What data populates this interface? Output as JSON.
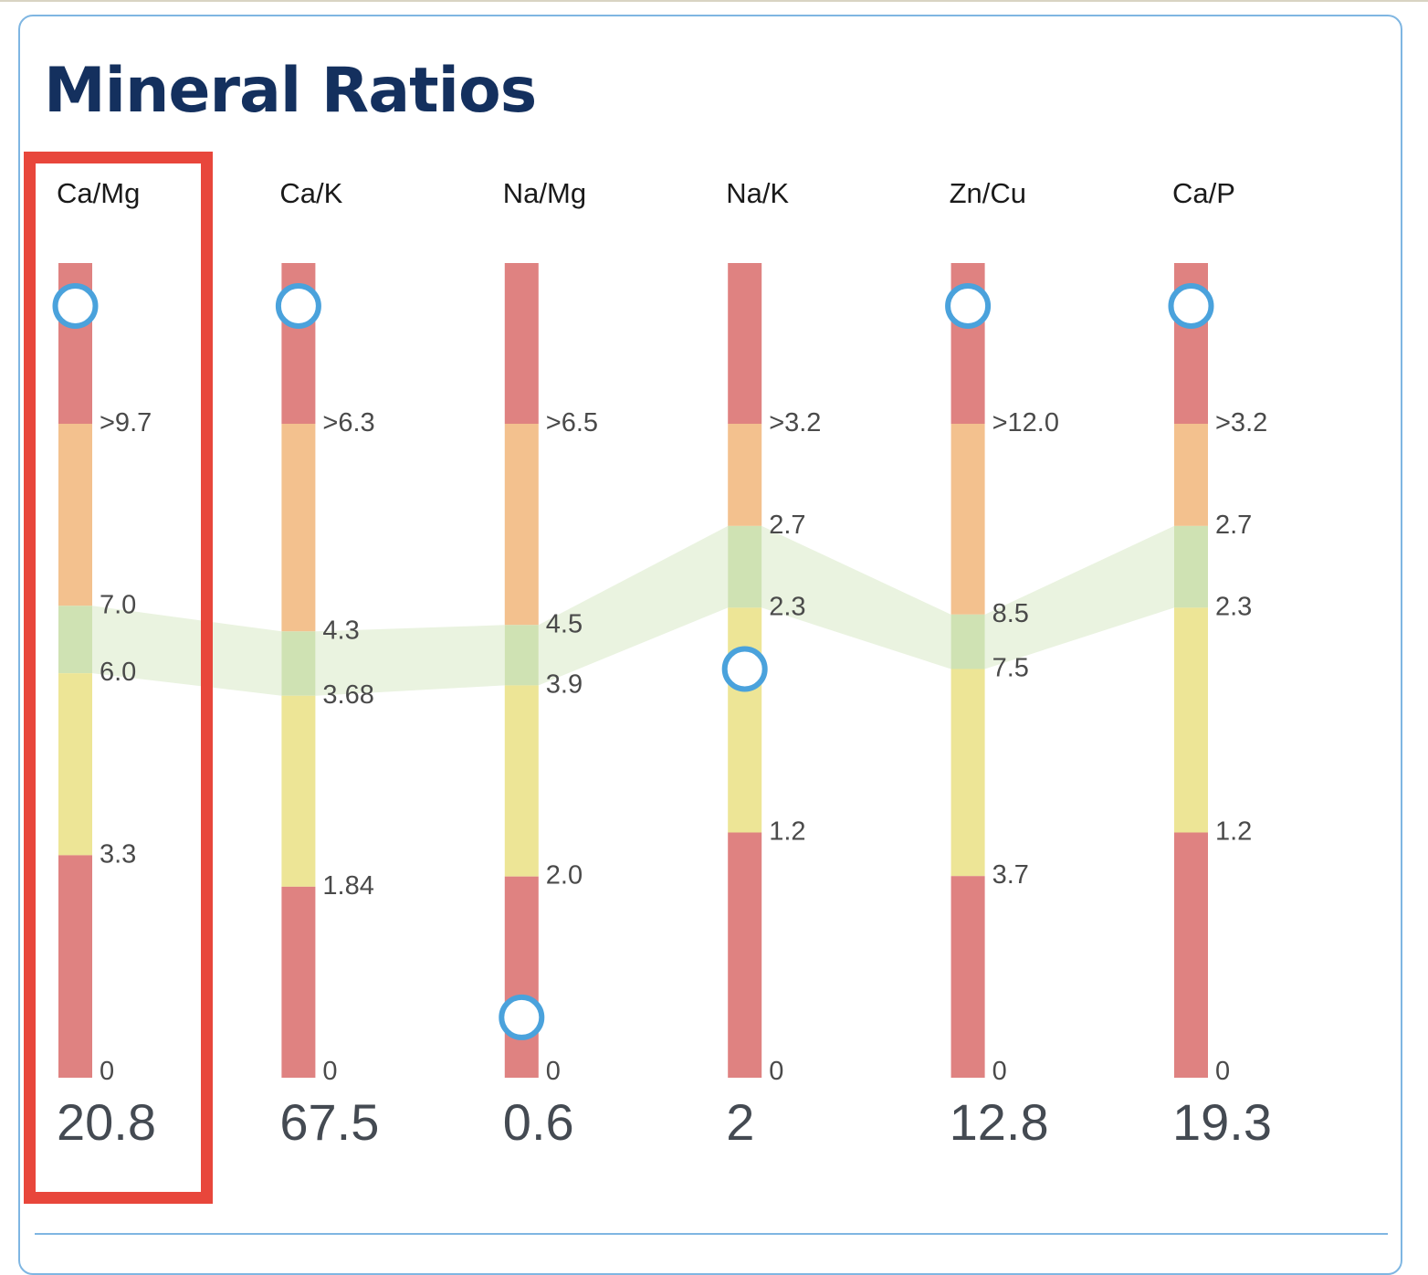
{
  "title": "Mineral Ratios",
  "highlighted_ratio": "Ca/Mg",
  "colors": {
    "high": "#df8281",
    "elevated": "#f3c18e",
    "ideal": "#cfe2b3",
    "low": "#ede596",
    "critical_low": "#df8281",
    "ideal_band": "#eaf3e0",
    "marker": "#4aa2dc",
    "title": "#14305e",
    "highlight": "#e8463b",
    "card_border": "#7fb6e2"
  },
  "chart_data": {
    "type": "range-gauge",
    "title": "Mineral Ratios",
    "series": [
      {
        "name": "Ca/Mg",
        "value_text": "20.8",
        "value": 20.8,
        "marker_position": "above-range",
        "min_label": "0",
        "thresholds": [
          {
            "label": ">9.7",
            "value": 9.7
          },
          {
            "label": "7.0",
            "value": 7.0
          },
          {
            "label": "6.0",
            "value": 6.0
          },
          {
            "label": "3.3",
            "value": 3.3
          }
        ]
      },
      {
        "name": "Ca/K",
        "value_text": "67.5",
        "value": 67.5,
        "marker_position": "above-range",
        "min_label": "0",
        "thresholds": [
          {
            "label": ">6.3",
            "value": 6.3
          },
          {
            "label": "4.3",
            "value": 4.3
          },
          {
            "label": "3.68",
            "value": 3.68
          },
          {
            "label": "1.84",
            "value": 1.84
          }
        ]
      },
      {
        "name": "Na/Mg",
        "value_text": "0.6",
        "value": 0.6,
        "marker_position": "in-range",
        "min_label": "0",
        "thresholds": [
          {
            "label": ">6.5",
            "value": 6.5
          },
          {
            "label": "4.5",
            "value": 4.5
          },
          {
            "label": "3.9",
            "value": 3.9
          },
          {
            "label": "2.0",
            "value": 2.0
          }
        ]
      },
      {
        "name": "Na/K",
        "value_text": "2",
        "value": 2,
        "marker_position": "in-range",
        "min_label": "0",
        "thresholds": [
          {
            "label": ">3.2",
            "value": 3.2
          },
          {
            "label": "2.7",
            "value": 2.7
          },
          {
            "label": "2.3",
            "value": 2.3
          },
          {
            "label": "1.2",
            "value": 1.2
          }
        ]
      },
      {
        "name": "Zn/Cu",
        "value_text": "12.8",
        "value": 12.8,
        "marker_position": "above-range",
        "min_label": "0",
        "thresholds": [
          {
            "label": ">12.0",
            "value": 12.0
          },
          {
            "label": "8.5",
            "value": 8.5
          },
          {
            "label": "7.5",
            "value": 7.5
          },
          {
            "label": "3.7",
            "value": 3.7
          }
        ]
      },
      {
        "name": "Ca/P",
        "value_text": "19.3",
        "value": 19.3,
        "marker_position": "above-range",
        "min_label": "0",
        "thresholds": [
          {
            "label": ">3.2",
            "value": 3.2
          },
          {
            "label": "2.7",
            "value": 2.7
          },
          {
            "label": "2.3",
            "value": 2.3
          },
          {
            "label": "1.2",
            "value": 1.2
          }
        ]
      }
    ]
  }
}
